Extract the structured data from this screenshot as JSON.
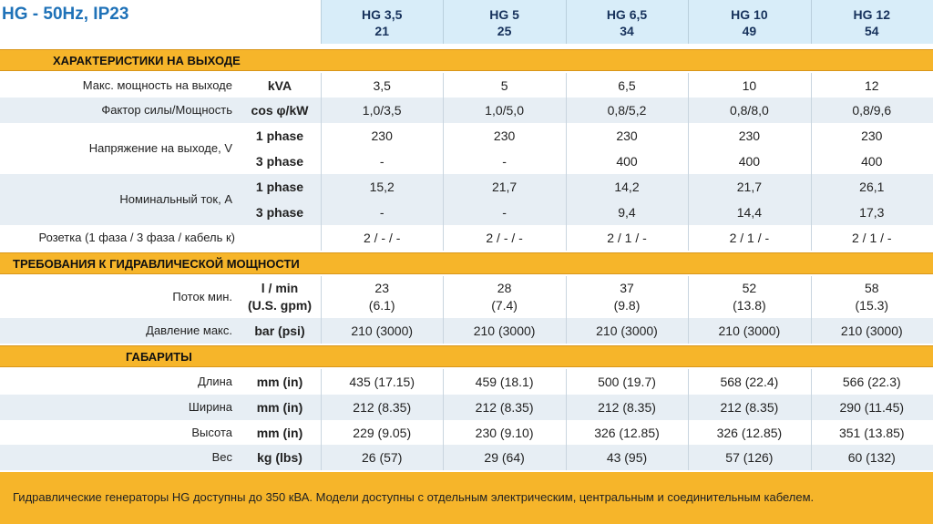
{
  "title": "HG - 50Hz, IP23",
  "columns": [
    {
      "name": "HG 3,5",
      "code": "21"
    },
    {
      "name": "HG 5",
      "code": "25"
    },
    {
      "name": "HG 6,5",
      "code": "34"
    },
    {
      "name": "HG 10",
      "code": "49"
    },
    {
      "name": "HG 12",
      "code": "54"
    }
  ],
  "sections": [
    {
      "title": "ХАРАКТЕРИСТИКИ НА ВЫХОДЕ",
      "rows": [
        {
          "label": "Макс. мощность на выходе",
          "lines": [
            {
              "unit": "kVA",
              "values": [
                "3,5",
                "5",
                "6,5",
                "10",
                "12"
              ]
            }
          ]
        },
        {
          "label": "Фактор силы/Мощность",
          "lines": [
            {
              "unit": "cos φ/kW",
              "values": [
                "1,0/3,5",
                "1,0/5,0",
                "0,8/5,2",
                "0,8/8,0",
                "0,8/9,6"
              ]
            }
          ]
        },
        {
          "label": "Напряжение на выходе, V",
          "lines": [
            {
              "unit": "1 phase",
              "values": [
                "230",
                "230",
                "230",
                "230",
                "230"
              ]
            },
            {
              "unit": "3 phase",
              "values": [
                "-",
                "-",
                "400",
                "400",
                "400"
              ]
            }
          ]
        },
        {
          "label": "Номинальный ток, A",
          "lines": [
            {
              "unit": "1 phase",
              "values": [
                "15,2",
                "21,7",
                "14,2",
                "21,7",
                "26,1"
              ]
            },
            {
              "unit": "3 phase",
              "values": [
                "-",
                "-",
                "9,4",
                "14,4",
                "17,3"
              ]
            }
          ]
        },
        {
          "label": "Розетка (1 фаза / 3 фаза / кабель к)",
          "lines": [
            {
              "unit": null,
              "values": [
                "2 / - / -",
                "2 / - / -",
                "2 / 1 / -",
                "2 / 1 / -",
                "2 / 1 / -"
              ]
            }
          ]
        }
      ]
    },
    {
      "title": "ТРЕБОВАНИЯ К ГИДРАВЛИЧЕСКОЙ МОЩНОСТИ",
      "rows": [
        {
          "label": "Поток мин.",
          "lines": [
            {
              "unit": "l / min",
              "values": [
                "23",
                "28",
                "37",
                "52",
                "58"
              ]
            },
            {
              "unit": "(U.S. gpm)",
              "values": [
                "(6.1)",
                "(7.4)",
                "(9.8)",
                "(13.8)",
                "(15.3)"
              ]
            }
          ]
        },
        {
          "label": "Давление макс.",
          "lines": [
            {
              "unit": "bar (psi)",
              "values": [
                "210 (3000)",
                "210 (3000)",
                "210 (3000)",
                "210 (3000)",
                "210 (3000)"
              ]
            }
          ]
        }
      ]
    },
    {
      "title": "ГАБАРИТЫ",
      "rows": [
        {
          "label": "Длина",
          "lines": [
            {
              "unit": "mm (in)",
              "values": [
                "435 (17.15)",
                "459 (18.1)",
                "500 (19.7)",
                "568 (22.4)",
                "566 (22.3)"
              ]
            }
          ]
        },
        {
          "label": "Ширина",
          "lines": [
            {
              "unit": "mm (in)",
              "values": [
                "212 (8.35)",
                "212 (8.35)",
                "212 (8.35)",
                "212 (8.35)",
                "290 (11.45)"
              ]
            }
          ]
        },
        {
          "label": "Высота",
          "lines": [
            {
              "unit": "mm (in)",
              "values": [
                "229 (9.05)",
                "230 (9.10)",
                "326 (12.85)",
                "326 (12.85)",
                "351 (13.85)"
              ]
            }
          ]
        },
        {
          "label": "Вес",
          "lines": [
            {
              "unit": "kg (lbs)",
              "values": [
                "26 (57)",
                "29 (64)",
                "43 (95)",
                "57 (126)",
                "60 (132)"
              ]
            }
          ]
        }
      ]
    }
  ],
  "footer": "Гидравлические генераторы HG доступны до 350 кВА. Модели доступны с отдельным электрическим, центральным и соединительным кабелем."
}
